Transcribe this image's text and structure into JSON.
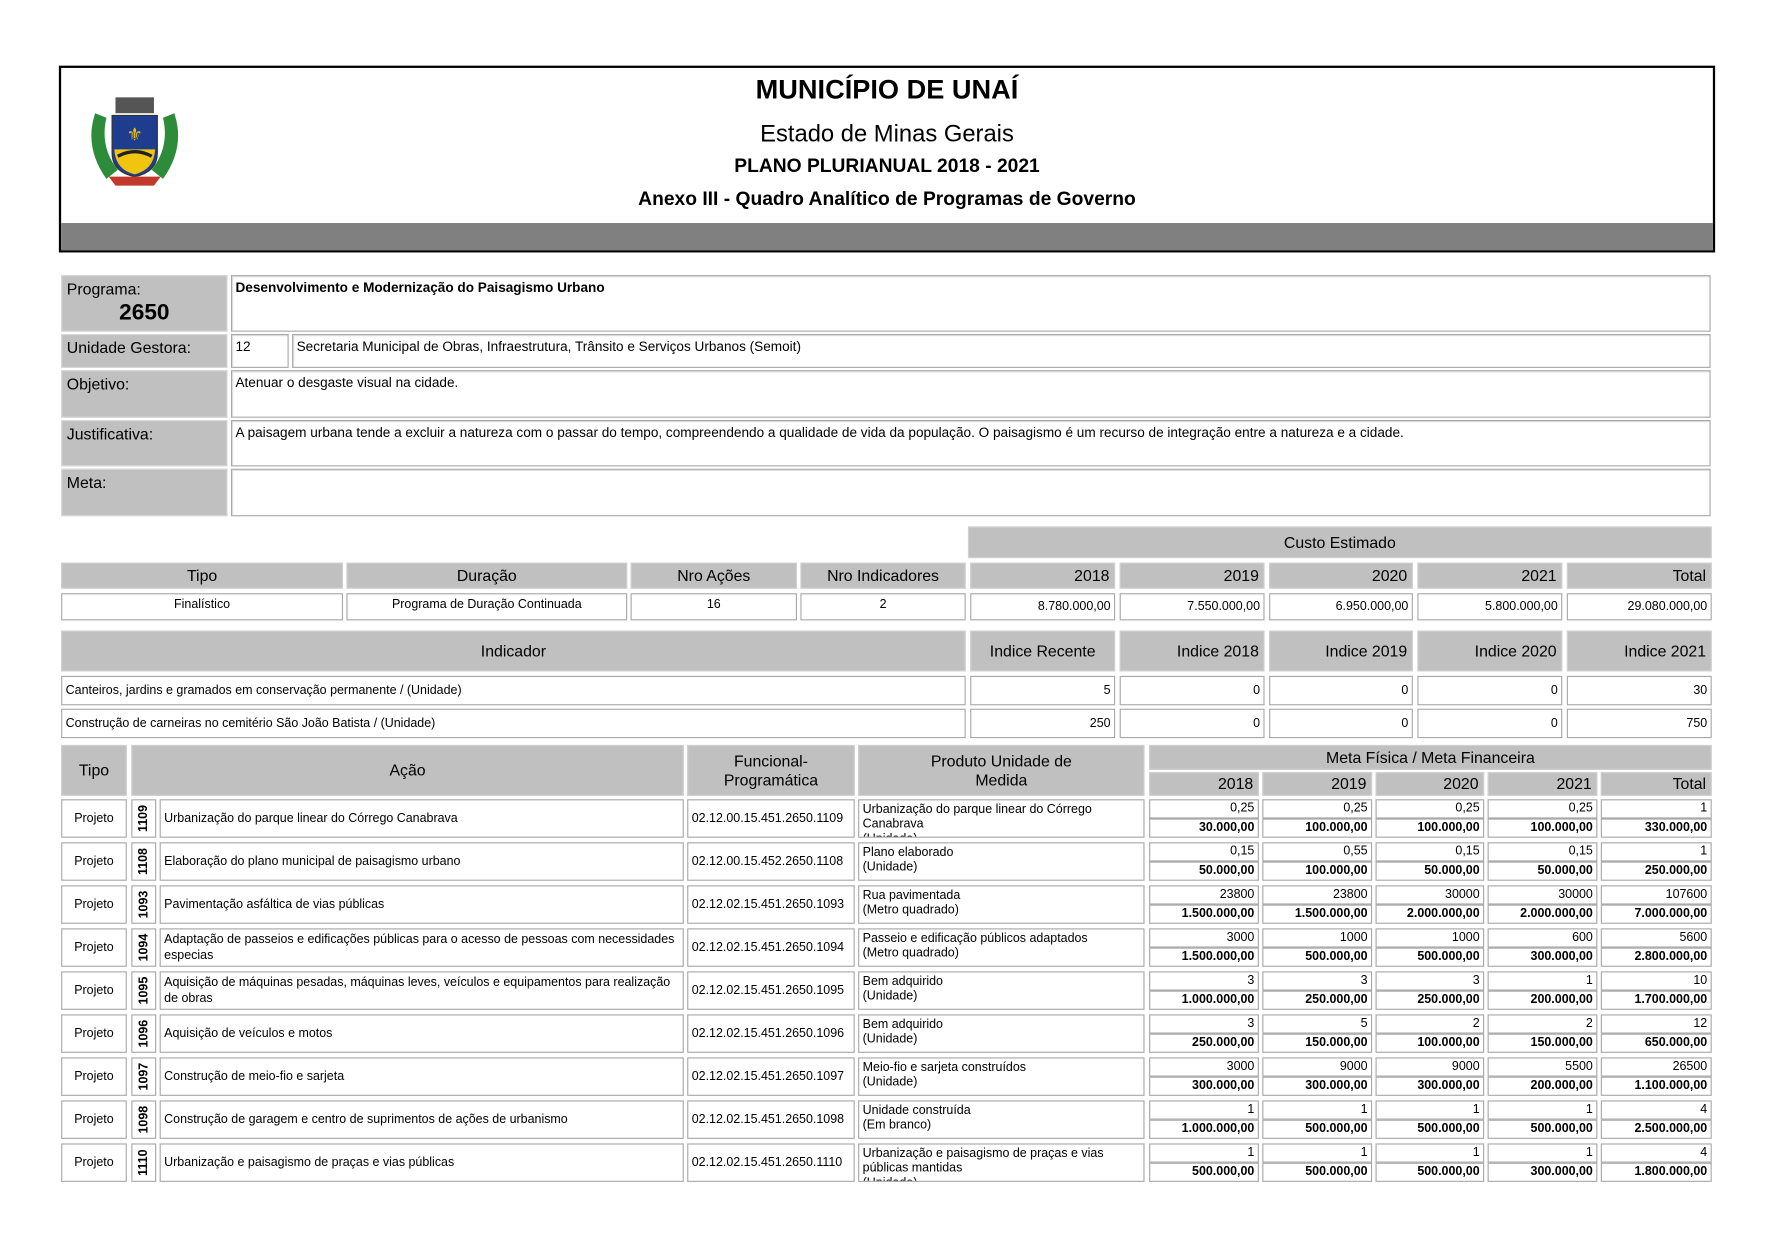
{
  "header": {
    "title": "MUNICÍPIO DE UNAÍ",
    "state": "Estado de Minas Gerais",
    "plan": "PLANO PLURIANUAL 2018 - 2021",
    "annex": "Anexo III - Quadro Analítico de Programas de Governo",
    "logo": "coat-of-arms-of-unai"
  },
  "programa": {
    "label": "Programa:",
    "code": "2650",
    "name": "Desenvolvimento e Modernização do Paisagismo Urbano"
  },
  "unidade": {
    "label": "Unidade Gestora:",
    "code": "12",
    "name": "Secretaria Municipal de Obras, Infraestrutura, Trânsito e Serviços Urbanos (Semoit)"
  },
  "objetivo": {
    "label": "Objetivo:",
    "text": "Atenuar o desgaste visual na cidade."
  },
  "justificativa": {
    "label": "Justificativa:",
    "text": "A paisagem urbana tende a excluir a natureza com o passar do tempo, compreendendo a qualidade de vida da população. O paisagismo é um recurso de integração entre a natureza e a cidade."
  },
  "meta": {
    "label": "Meta:",
    "text": ""
  },
  "summary": {
    "custo_header": "Custo Estimado",
    "headers": [
      "Tipo",
      "Duração",
      "Nro Ações",
      "Nro Indicadores",
      "2018",
      "2019",
      "2020",
      "2021",
      "Total"
    ],
    "values": [
      "Finalístico",
      "Programa de Duração Continuada",
      "16",
      "2",
      "8.780.000,00",
      "7.550.000,00",
      "6.950.000,00",
      "5.800.000,00",
      "29.080.000,00"
    ]
  },
  "indicadores": {
    "headers": [
      "Indicador",
      "Indice Recente",
      "Indice 2018",
      "Indice 2019",
      "Indice 2020",
      "Indice 2021"
    ],
    "rows": [
      [
        "Canteiros, jardins e gramados em conservação permanente / (Unidade)",
        "5",
        "0",
        "0",
        "0",
        "30"
      ],
      [
        "Construção de carneiras no cemitério São João Batista / (Unidade)",
        "250",
        "0",
        "0",
        "0",
        "750"
      ]
    ]
  },
  "acoes": {
    "headers": {
      "tipo": "Tipo",
      "acao": "Ação",
      "funcional": "Funcional-Programática",
      "produto": "Produto Unidade de Medida",
      "meta": "Meta Física / Meta Financeira",
      "years": [
        "2018",
        "2019",
        "2020",
        "2021",
        "Total"
      ]
    },
    "rows": [
      {
        "tipo": "Projeto",
        "code": "1109",
        "acao": "Urbanização do parque linear do Córrego Canabrava",
        "funcional": "02.12.00.15.451.2650.1109",
        "produto": "Urbanização do parque linear do Córrego Canabrava",
        "unidade": "(Unidade)",
        "fisica": [
          "0,25",
          "0,25",
          "0,25",
          "0,25",
          "1"
        ],
        "financeira": [
          "30.000,00",
          "100.000,00",
          "100.000,00",
          "100.000,00",
          "330.000,00"
        ]
      },
      {
        "tipo": "Projeto",
        "code": "1108",
        "acao": "Elaboração do plano municipal de paisagismo urbano",
        "funcional": "02.12.00.15.452.2650.1108",
        "produto": "Plano elaborado",
        "unidade": "(Unidade)",
        "fisica": [
          "0,15",
          "0,55",
          "0,15",
          "0,15",
          "1"
        ],
        "financeira": [
          "50.000,00",
          "100.000,00",
          "50.000,00",
          "50.000,00",
          "250.000,00"
        ]
      },
      {
        "tipo": "Projeto",
        "code": "1093",
        "acao": "Pavimentação asfáltica de vias públicas",
        "funcional": "02.12.02.15.451.2650.1093",
        "produto": "Rua pavimentada",
        "unidade": "(Metro quadrado)",
        "fisica": [
          "23800",
          "23800",
          "30000",
          "30000",
          "107600"
        ],
        "financeira": [
          "1.500.000,00",
          "1.500.000,00",
          "2.000.000,00",
          "2.000.000,00",
          "7.000.000,00"
        ]
      },
      {
        "tipo": "Projeto",
        "code": "1094",
        "acao": "Adaptação de passeios e edificações públicas para o acesso de pessoas com necessidades especias",
        "funcional": "02.12.02.15.451.2650.1094",
        "produto": "Passeio e edificação públicos adaptados",
        "unidade": "(Metro quadrado)",
        "fisica": [
          "3000",
          "1000",
          "1000",
          "600",
          "5600"
        ],
        "financeira": [
          "1.500.000,00",
          "500.000,00",
          "500.000,00",
          "300.000,00",
          "2.800.000,00"
        ]
      },
      {
        "tipo": "Projeto",
        "code": "1095",
        "acao": "Aquisição de máquinas pesadas, máquinas leves, veículos e equipamentos para realização de obras",
        "funcional": "02.12.02.15.451.2650.1095",
        "produto": "Bem adquirido",
        "unidade": "(Unidade)",
        "fisica": [
          "3",
          "3",
          "3",
          "1",
          "10"
        ],
        "financeira": [
          "1.000.000,00",
          "250.000,00",
          "250.000,00",
          "200.000,00",
          "1.700.000,00"
        ]
      },
      {
        "tipo": "Projeto",
        "code": "1096",
        "acao": "Aquisição de veículos e motos",
        "funcional": "02.12.02.15.451.2650.1096",
        "produto": "Bem adquirido",
        "unidade": "(Unidade)",
        "fisica": [
          "3",
          "5",
          "2",
          "2",
          "12"
        ],
        "financeira": [
          "250.000,00",
          "150.000,00",
          "100.000,00",
          "150.000,00",
          "650.000,00"
        ]
      },
      {
        "tipo": "Projeto",
        "code": "1097",
        "acao": "Construção de meio-fio e sarjeta",
        "funcional": "02.12.02.15.451.2650.1097",
        "produto": "Meio-fio e sarjeta construídos",
        "unidade": "(Unidade)",
        "fisica": [
          "3000",
          "9000",
          "9000",
          "5500",
          "26500"
        ],
        "financeira": [
          "300.000,00",
          "300.000,00",
          "300.000,00",
          "200.000,00",
          "1.100.000,00"
        ]
      },
      {
        "tipo": "Projeto",
        "code": "1098",
        "acao": "Construção de garagem e centro de suprimentos de ações de urbanismo",
        "funcional": "02.12.02.15.451.2650.1098",
        "produto": "Unidade construída",
        "unidade": "(Em branco)",
        "fisica": [
          "1",
          "1",
          "1",
          "1",
          "4"
        ],
        "financeira": [
          "1.000.000,00",
          "500.000,00",
          "500.000,00",
          "500.000,00",
          "2.500.000,00"
        ]
      },
      {
        "tipo": "Projeto",
        "code": "1110",
        "acao": "Urbanização e paisagismo de praças e vias públicas",
        "funcional": "02.12.02.15.451.2650.1110",
        "produto": "Urbanização e paisagismo de praças e vias públicas mantidas",
        "unidade": "(Unidade)",
        "fisica": [
          "1",
          "1",
          "1",
          "1",
          "4"
        ],
        "financeira": [
          "500.000,00",
          "500.000,00",
          "500.000,00",
          "300.000,00",
          "1.800.000,00"
        ]
      }
    ]
  }
}
